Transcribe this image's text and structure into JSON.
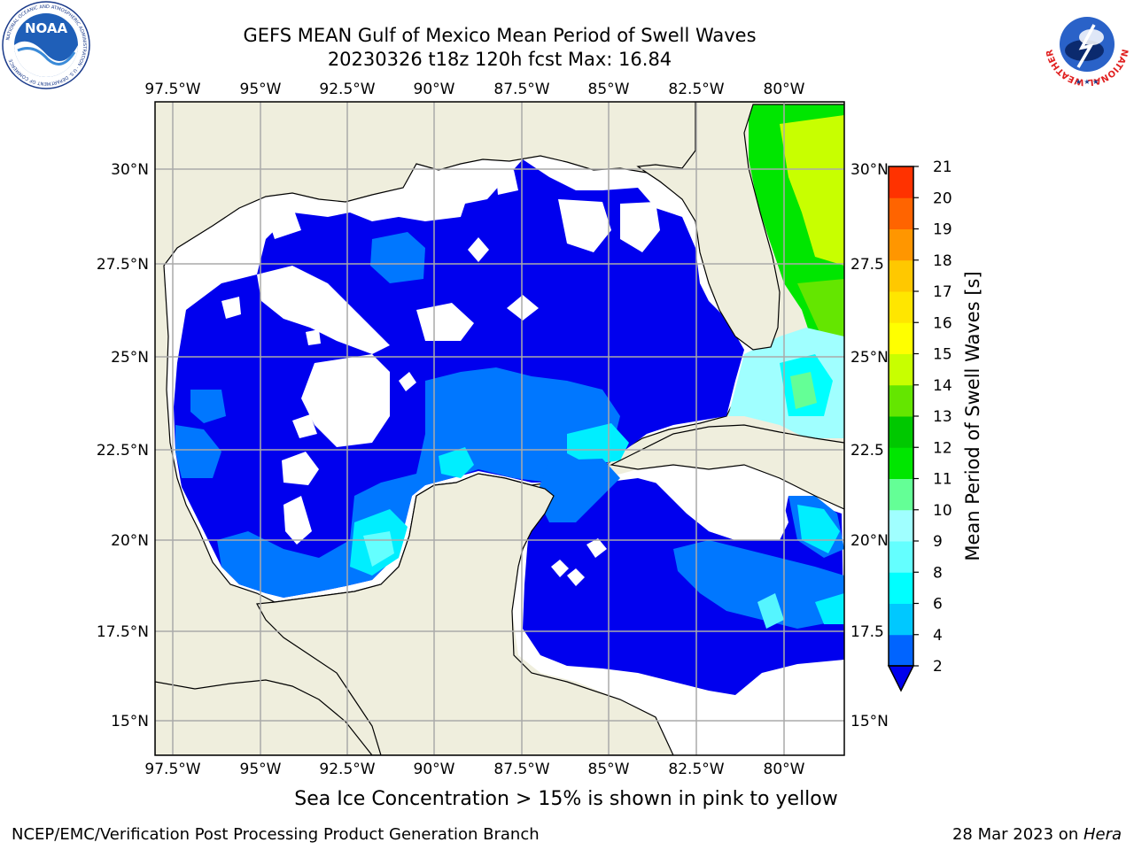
{
  "title": {
    "line1": "GEFS MEAN Gulf of Mexico Mean Period of Swell Waves",
    "line2": "20230326 t18z 120h fcst   Max: 16.84"
  },
  "map": {
    "lon_labels": [
      "97.5°W",
      "95°W",
      "92.5°W",
      "90°W",
      "87.5°W",
      "85°W",
      "82.5°W",
      "80°W"
    ],
    "lat_labels": [
      "30°N",
      "27.5°N",
      "25°N",
      "22.5°N",
      "20°N",
      "17.5°N",
      "15°N"
    ],
    "lat_labels_right": [
      "30°N",
      "27.5",
      "25°N",
      "22.5",
      "20°N",
      "17.5",
      "15°N"
    ],
    "colors": {
      "land": "#efeedd",
      "ocean_dark": "#0000ee",
      "ocean_mid": "#0077ff",
      "ocean_cyan": "#00eeff"
    }
  },
  "colorbar": {
    "label": "Mean Period of Swell Waves [s]",
    "ticks": [
      "2",
      "4",
      "6",
      "8",
      "9",
      "10",
      "11",
      "12",
      "13",
      "14",
      "15",
      "16",
      "17",
      "18",
      "19",
      "20",
      "21"
    ],
    "colors": [
      "#0064ff",
      "#00c8ff",
      "#00ffff",
      "#64ffff",
      "#a0ffff",
      "#64ff96",
      "#00e600",
      "#00c800",
      "#64e600",
      "#c8ff00",
      "#ffff00",
      "#ffe600",
      "#ffc800",
      "#ff9600",
      "#ff6400",
      "#ff3200",
      "#ff0000"
    ]
  },
  "notes": {
    "ice": "Sea Ice Concentration > 15% is shown in pink to yellow",
    "credit": "NCEP/EMC/Verification Post Processing Product Generation Branch",
    "date": "28 Mar 2023 on ",
    "machine": "Hera"
  },
  "logos": {
    "noaa_text": "NOAA",
    "noaa_ring": "NATIONAL OCEANIC AND ATMOSPHERIC ADMINISTRATION · U.S. DEPARTMENT OF COMMERCE",
    "nws_ring": "NATIONAL WEATHER SERVICE"
  }
}
